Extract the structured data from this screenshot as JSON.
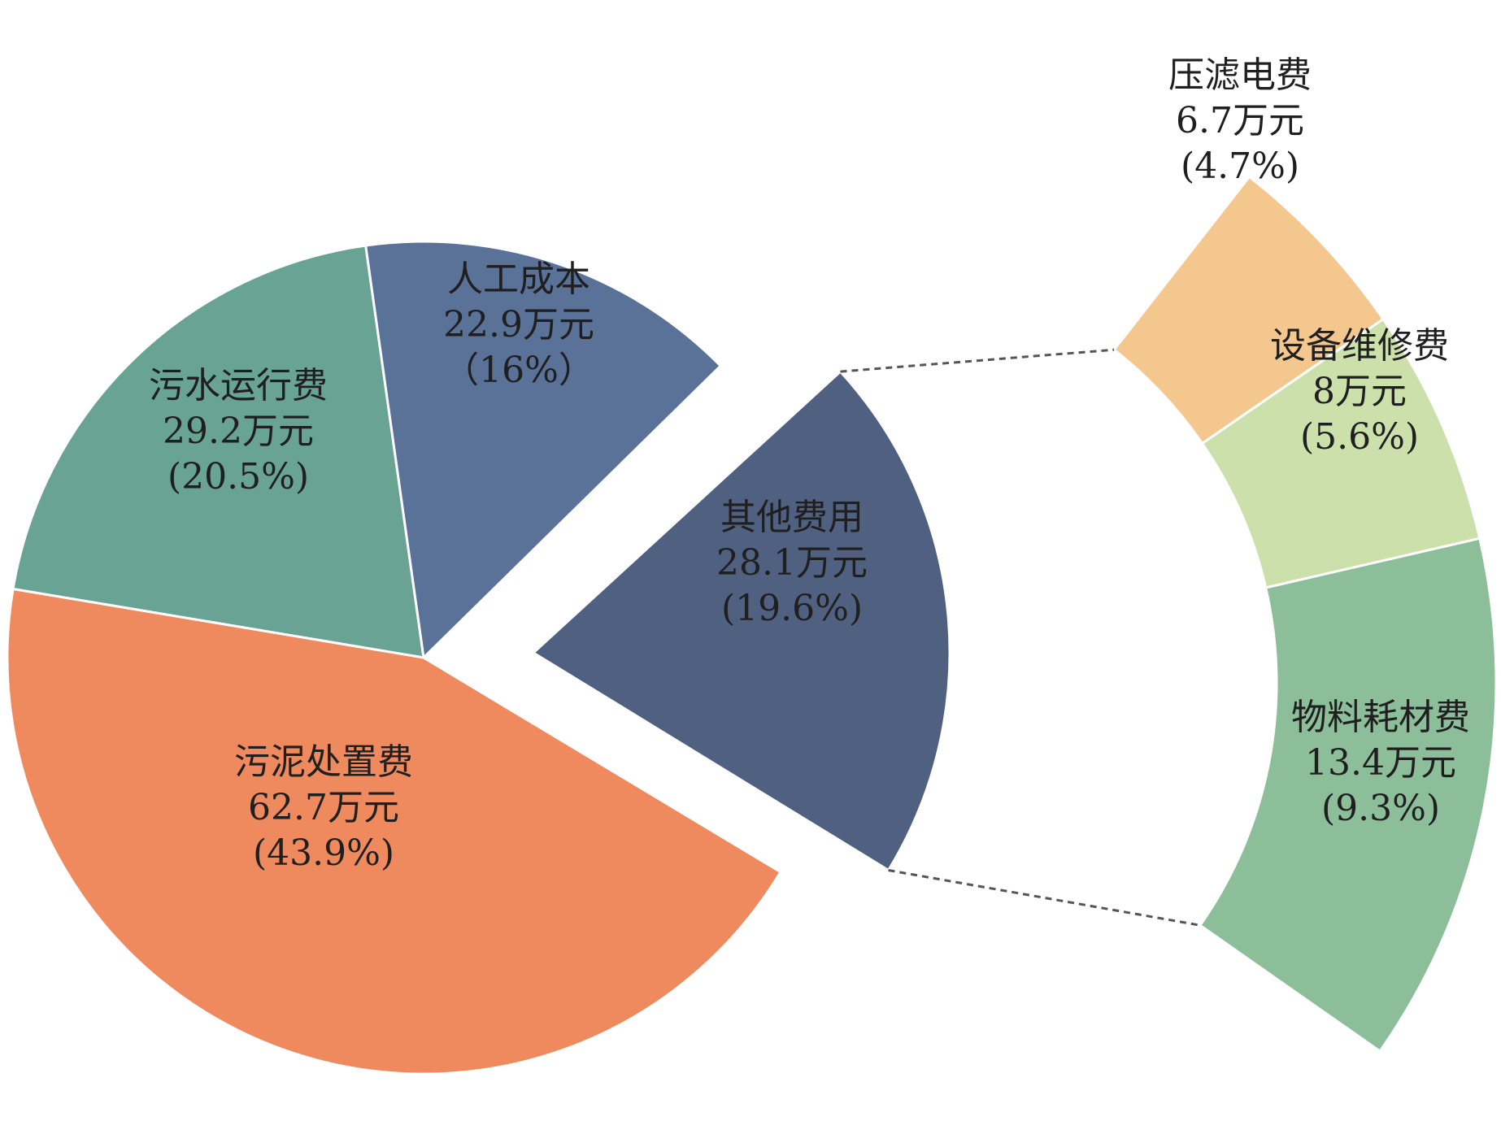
{
  "chart_data": {
    "type": "pie",
    "title": "",
    "main_pie": [
      {
        "key": "wrsl",
        "name": "污水运行费",
        "value": "29.2万元",
        "percent": "(20.5%)",
        "color": "#69A393"
      },
      {
        "key": "rgcb",
        "name": "人工成本",
        "value": "22.9万元",
        "percent": "（16%）",
        "color": "#5A7198"
      },
      {
        "key": "qtfy",
        "name": "其他费用",
        "value": "28.1万元",
        "percent": "(19.6%)",
        "color": "#506080"
      },
      {
        "key": "wnczf",
        "name": "污泥处置费",
        "value": "62.7万元",
        "percent": "(43.9%)",
        "color": "#EE8A5E"
      }
    ],
    "breakdown_of": "其他费用",
    "breakdown": [
      {
        "key": "ylsf",
        "name": "压滤电费",
        "value": "6.7万元",
        "percent": "(4.7%)",
        "color": "#F3C78E"
      },
      {
        "key": "sbwx",
        "name": "设备维修费",
        "value": "8万元",
        "percent": "(5.6%)",
        "color": "#CCE0AB"
      },
      {
        "key": "wlhc",
        "name": "物料耗材费",
        "value": "13.4万元",
        "percent": "(9.3%)",
        "color": "#8CBF99"
      }
    ]
  }
}
